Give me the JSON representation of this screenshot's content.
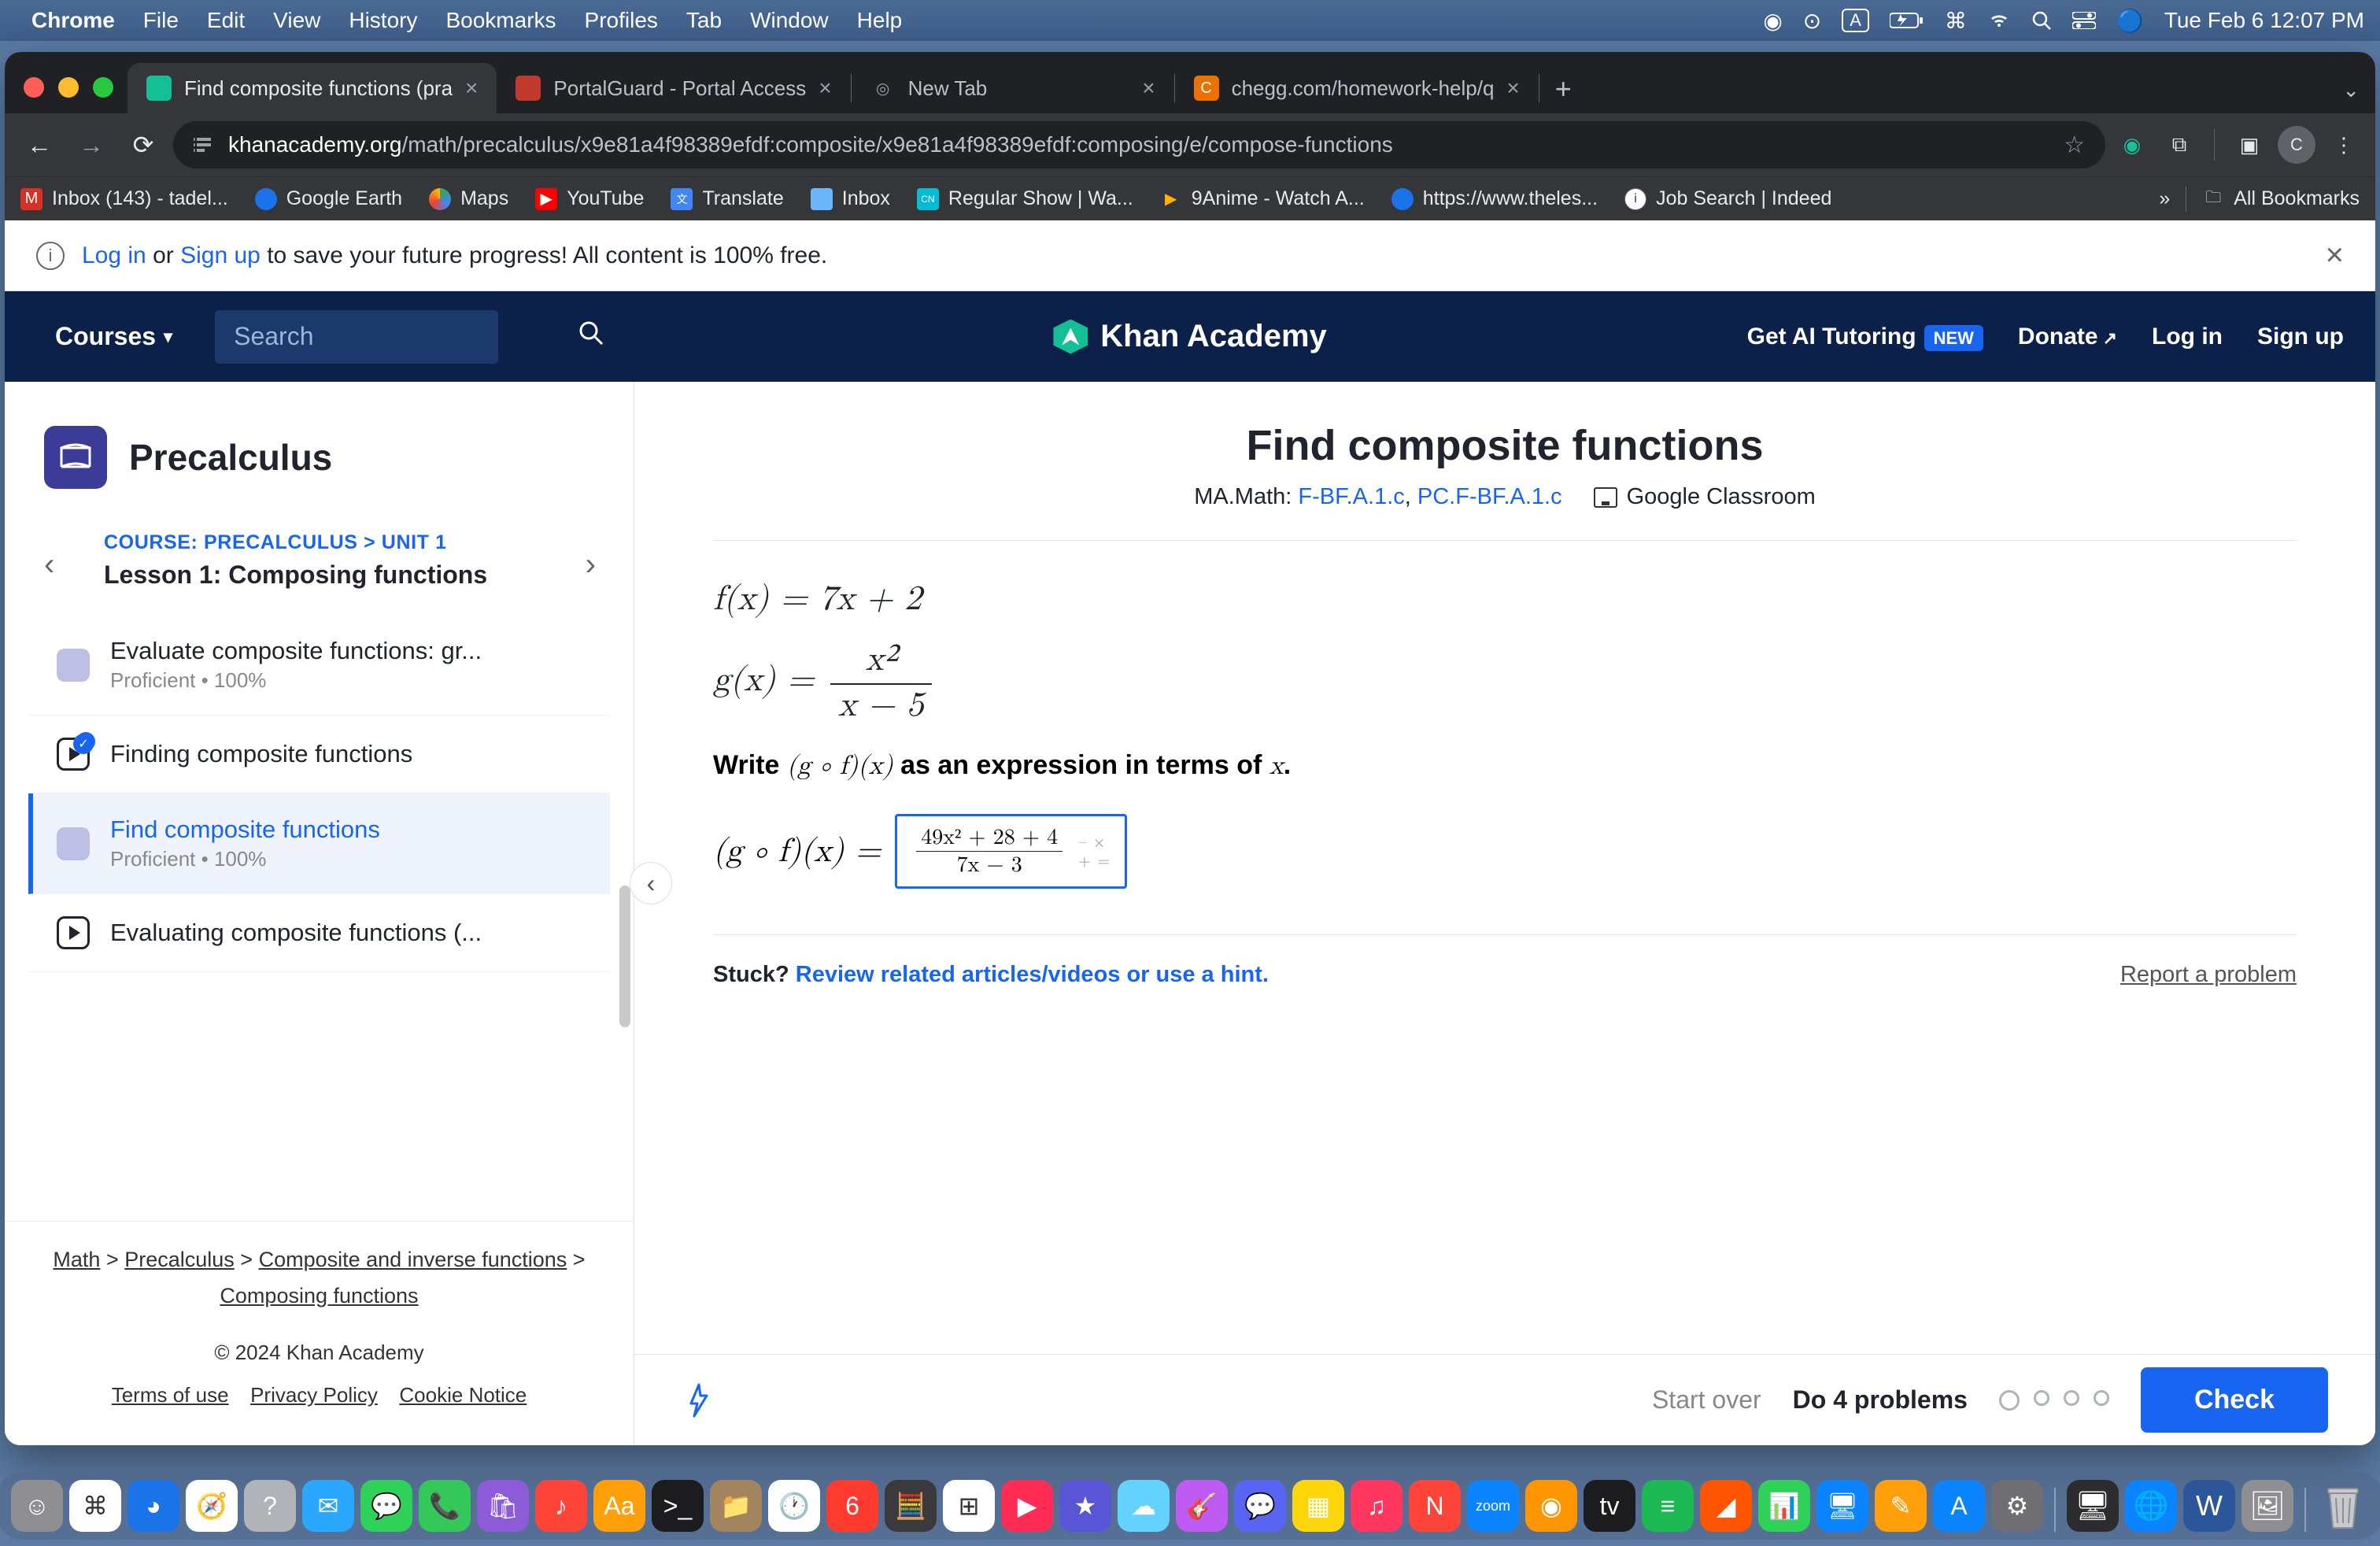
{
  "mac": {
    "app": "Chrome",
    "menus": [
      "File",
      "Edit",
      "View",
      "History",
      "Bookmarks",
      "Profiles",
      "Tab",
      "Window",
      "Help"
    ],
    "clock": "Tue Feb 6  12:07 PM",
    "battery_label": "A"
  },
  "chrome": {
    "tabs": [
      {
        "title": "Find composite functions (pra",
        "favicon_bg": "#14bf96",
        "favicon_text": "",
        "active": true
      },
      {
        "title": "PortalGuard - Portal Access",
        "favicon_bg": "#c0392b",
        "favicon_text": "",
        "active": false
      },
      {
        "title": "New Tab",
        "favicon_bg": "#ffffff00",
        "favicon_text": "◎",
        "active": false
      },
      {
        "title": "chegg.com/homework-help/q",
        "favicon_bg": "#eb7100",
        "favicon_text": "C",
        "active": false
      }
    ],
    "url_domain": "khanacademy.org",
    "url_path": "/math/precalculus/x9e81a4f98389efdf:composite/x9e81a4f98389efdf:composing/e/compose-functions",
    "bookmarks": [
      {
        "icon_bg": "#d93025",
        "label": "Inbox (143) - tadel..."
      },
      {
        "icon_bg": "#1a73e8",
        "label": "Google Earth"
      },
      {
        "icon_bg": "#34a853",
        "label": "Maps"
      },
      {
        "icon_bg": "#ff0000",
        "label": "YouTube"
      },
      {
        "icon_bg": "#4285f4",
        "label": "Translate"
      },
      {
        "icon_bg": "#6ab7ff",
        "label": "Inbox"
      },
      {
        "icon_bg": "#00bcd4",
        "label": "Regular Show | Wa..."
      },
      {
        "icon_bg": "#ffb300",
        "label": "9Anime - Watch A..."
      },
      {
        "icon_bg": "#1a73e8",
        "label": "https://www.theles..."
      },
      {
        "icon_bg": "#ffffff",
        "label": "Job Search | Indeed"
      }
    ],
    "all_bookmarks": "All Bookmarks"
  },
  "banner": {
    "text_prefix": "",
    "login": "Log in",
    "or": " or ",
    "signup": "Sign up",
    "text_suffix": " to save your future progress! All content is 100% free."
  },
  "ka_nav": {
    "courses": "Courses",
    "search_placeholder": "Search",
    "brand": "Khan Academy",
    "ai": "Get AI Tutoring",
    "new": "NEW",
    "donate": "Donate",
    "login": "Log in",
    "signup": "Sign up"
  },
  "sidebar": {
    "course": "Precalculus",
    "breadcrumb": "COURSE: PRECALCULUS > UNIT 1",
    "lesson": "Lesson 1: Composing functions",
    "items": [
      {
        "type": "practice",
        "name": "Evaluate composite functions: gr...",
        "meta": "Proficient • 100%"
      },
      {
        "type": "video_done",
        "name": "Finding composite functions",
        "meta": ""
      },
      {
        "type": "practice_active",
        "name": "Find composite functions",
        "meta": "Proficient • 100%"
      },
      {
        "type": "video",
        "name": "Evaluating composite functions (...",
        "meta": ""
      }
    ],
    "path": {
      "a": "Math",
      "b": "Precalculus",
      "c": "Composite and inverse functions",
      "d": "Composing functions"
    },
    "copyright": "© 2024 Khan Academy",
    "legal": [
      "Terms of use",
      "Privacy Policy",
      "Cookie Notice"
    ]
  },
  "exercise": {
    "title": "Find composite functions",
    "standards_label": "MA.Math:",
    "standards": [
      "F-BF.A.1.c",
      "PC.F-BF.A.1.c"
    ],
    "google_classroom": "Google Classroom",
    "f_line": "f(x) = 7x + 2",
    "g_lhs": "g(x) = ",
    "g_num": "x²",
    "g_den": "x − 5",
    "instruction_pre": "Write ",
    "instruction_mid": "(g ∘ f)(x)",
    "instruction_post": " as an expression in terms of ",
    "instruction_var": "x",
    "answer_lhs": "(g ∘ f)(x) = ",
    "answer_num": "49x² + 28 + 4",
    "answer_den": "7x − 3",
    "stuck_label": "Stuck? ",
    "stuck_link": "Review related articles/videos or use a hint.",
    "report": "Report a problem"
  },
  "actionbar": {
    "start_over": "Start over",
    "do_n": "Do 4 problems",
    "check": "Check"
  },
  "dock": {
    "icons": [
      {
        "bg": "#8e8e93",
        "glyph": "☺"
      },
      {
        "bg": "#ffffff",
        "glyph": "⌘"
      },
      {
        "bg": "#1a73e8",
        "glyph": "◕"
      },
      {
        "bg": "#ffffff",
        "glyph": "🧭"
      },
      {
        "bg": "#b0b3b8",
        "glyph": "?"
      },
      {
        "bg": "#2aa7ff",
        "glyph": "✉"
      },
      {
        "bg": "#30d158",
        "glyph": "💬"
      },
      {
        "bg": "#34c759",
        "glyph": "📞"
      },
      {
        "bg": "#8e5bd8",
        "glyph": "🛍"
      },
      {
        "bg": "#ff453a",
        "glyph": "♪"
      },
      {
        "bg": "#ff9f0a",
        "glyph": "Aa"
      },
      {
        "bg": "#1c1c1e",
        "glyph": ">_"
      },
      {
        "bg": "#a2845e",
        "glyph": "📁"
      },
      {
        "bg": "#ffffff",
        "glyph": "🕐"
      },
      {
        "bg": "#ff3b30",
        "glyph": "6"
      },
      {
        "bg": "#3a3a3c",
        "glyph": "🧮"
      },
      {
        "bg": "#ffffff",
        "glyph": "⊞"
      },
      {
        "bg": "#ff2d55",
        "glyph": "▶"
      },
      {
        "bg": "#5856d6",
        "glyph": "★"
      },
      {
        "bg": "#64d2ff",
        "glyph": "☁"
      },
      {
        "bg": "#bf5af2",
        "glyph": "🎸"
      },
      {
        "bg": "#5865f2",
        "glyph": "💬"
      },
      {
        "bg": "#ffd60a",
        "glyph": "▦"
      },
      {
        "bg": "#ff375f",
        "glyph": "♫"
      },
      {
        "bg": "#ff453a",
        "glyph": "N"
      },
      {
        "bg": "#0a84ff",
        "glyph": "zoom"
      },
      {
        "bg": "#ff9500",
        "glyph": "◉"
      },
      {
        "bg": "#1c1c1e",
        "glyph": "tv"
      },
      {
        "bg": "#1db954",
        "glyph": "≡"
      },
      {
        "bg": "#ff5500",
        "glyph": "◢"
      },
      {
        "bg": "#30d158",
        "glyph": "📊"
      },
      {
        "bg": "#0a84ff",
        "glyph": "🖥"
      },
      {
        "bg": "#ff9f0a",
        "glyph": "✎"
      },
      {
        "bg": "#0a84ff",
        "glyph": "A"
      },
      {
        "bg": "#6e6e73",
        "glyph": "⚙"
      }
    ],
    "right_icons": [
      {
        "bg": "#2c2c2e",
        "glyph": "🖥"
      },
      {
        "bg": "#0a84ff",
        "glyph": "🌐"
      },
      {
        "bg": "#2b579a",
        "glyph": "W"
      },
      {
        "bg": "#8e8e93",
        "glyph": "🖼"
      }
    ]
  },
  "colors": {
    "ka_navy": "#0b2149",
    "ka_blue": "#1865f2",
    "ka_green": "#14bf96"
  }
}
